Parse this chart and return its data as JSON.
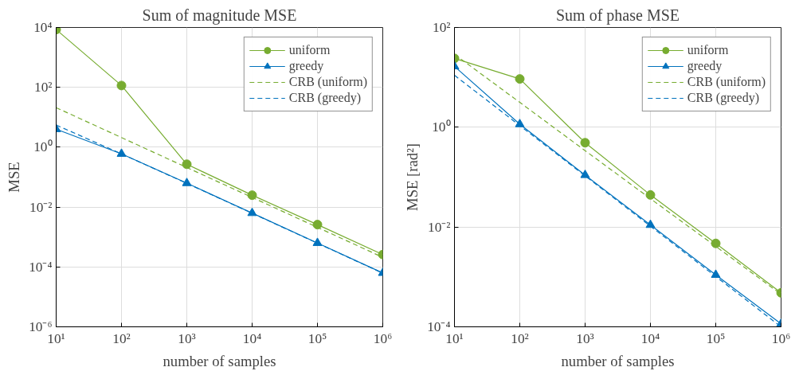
{
  "chart_data": [
    {
      "type": "line",
      "title": "Sum of magnitude MSE",
      "xlabel": "number of samples",
      "ylabel": "MSE",
      "log": "xy",
      "grid": true,
      "legend": "top right",
      "x": [
        10,
        100,
        1000,
        10000,
        100000,
        1000000
      ],
      "xlim": [
        10,
        1000000
      ],
      "ylim": [
        1e-06,
        10000
      ],
      "xticks": [
        {
          "value": 10,
          "label": "10¹"
        },
        {
          "value": 100,
          "label": "10²"
        },
        {
          "value": 1000,
          "label": "10³"
        },
        {
          "value": 10000,
          "label": "10⁴"
        },
        {
          "value": 100000,
          "label": "10⁵"
        },
        {
          "value": 1000000,
          "label": "10⁶"
        }
      ],
      "yticks": [
        {
          "value": 1e-06,
          "label": "10⁻⁶"
        },
        {
          "value": 0.0001,
          "label": "10⁻⁴"
        },
        {
          "value": 0.01,
          "label": "10⁻²"
        },
        {
          "value": 1,
          "label": "10⁰"
        },
        {
          "value": 100,
          "label": "10²"
        },
        {
          "value": 10000,
          "label": "10⁴"
        }
      ],
      "series": [
        {
          "name": "uniform",
          "color": "#77ac30",
          "marker": "circle",
          "line_style": "solid",
          "values": [
            8500,
            115,
            0.27,
            0.025,
            0.0026,
            0.00026
          ]
        },
        {
          "name": "greedy",
          "color": "#0072bd",
          "marker": "triangle",
          "line_style": "solid",
          "values": [
            4,
            0.6,
            0.063,
            0.0063,
            0.00063,
            6.3e-05
          ]
        },
        {
          "name": "CRB (uniform)",
          "color": "#77ac30",
          "marker": "none",
          "line_style": "dashed",
          "values": [
            21,
            2.1,
            0.21,
            0.021,
            0.0021,
            0.00021
          ]
        },
        {
          "name": "CRB (greedy)",
          "color": "#0072bd",
          "marker": "none",
          "line_style": "dashed",
          "values": [
            5.5,
            0.6,
            0.062,
            0.0062,
            0.00062,
            6.2e-05
          ]
        }
      ]
    },
    {
      "type": "line",
      "title": "Sum of phase MSE",
      "xlabel": "number of samples",
      "ylabel": "MSE [rad²]",
      "log": "xy",
      "grid": true,
      "legend": "top right",
      "x": [
        10,
        100,
        1000,
        10000,
        100000,
        1000000
      ],
      "xlim": [
        10,
        1000000
      ],
      "ylim": [
        0.0001,
        100
      ],
      "xticks": [
        {
          "value": 10,
          "label": "10¹"
        },
        {
          "value": 100,
          "label": "10²"
        },
        {
          "value": 1000,
          "label": "10³"
        },
        {
          "value": 10000,
          "label": "10⁴"
        },
        {
          "value": 100000,
          "label": "10⁵"
        },
        {
          "value": 1000000,
          "label": "10⁶"
        }
      ],
      "yticks": [
        {
          "value": 0.0001,
          "label": "10⁻⁴"
        },
        {
          "value": 0.01,
          "label": "10⁻²"
        },
        {
          "value": 1,
          "label": "10⁰"
        },
        {
          "value": 100,
          "label": "10²"
        }
      ],
      "series": [
        {
          "name": "uniform",
          "color": "#77ac30",
          "marker": "circle",
          "line_style": "solid",
          "values": [
            24,
            9.3,
            0.49,
            0.044,
            0.0047,
            0.00048
          ]
        },
        {
          "name": "greedy",
          "color": "#0072bd",
          "marker": "triangle",
          "line_style": "solid",
          "values": [
            16.6,
            1.15,
            0.11,
            0.011,
            0.0011,
            0.000115
          ]
        },
        {
          "name": "CRB (uniform)",
          "color": "#77ac30",
          "marker": "none",
          "line_style": "dashed",
          "values": [
            29,
            3.15,
            0.34,
            0.037,
            0.0041,
            0.00045
          ]
        },
        {
          "name": "CRB (greedy)",
          "color": "#0072bd",
          "marker": "none",
          "line_style": "dashed",
          "values": [
            11,
            1.08,
            0.106,
            0.0104,
            0.00102,
            0.0001
          ]
        }
      ]
    }
  ]
}
